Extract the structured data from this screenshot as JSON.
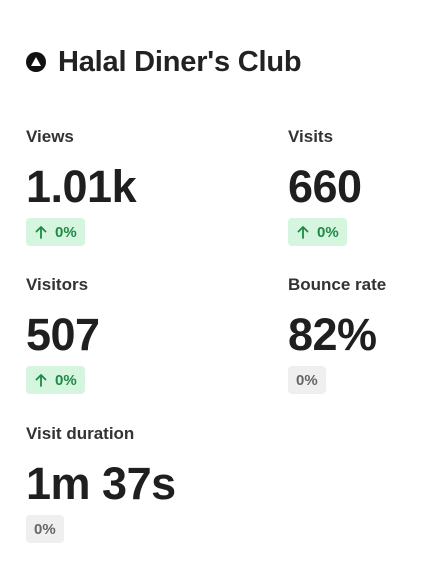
{
  "header": {
    "title": "Halal Diner's Club"
  },
  "metrics": [
    {
      "label": "Views",
      "value": "1.01k",
      "change": "0%",
      "trend": "up"
    },
    {
      "label": "Visits",
      "value": "660",
      "change": "0%",
      "trend": "up"
    },
    {
      "label": "Visitors",
      "value": "507",
      "change": "0%",
      "trend": "up"
    },
    {
      "label": "Bounce rate",
      "value": "82%",
      "change": "0%",
      "trend": "none"
    },
    {
      "label": "Visit duration",
      "value": "1m 37s",
      "change": "0%",
      "trend": "none"
    }
  ]
}
